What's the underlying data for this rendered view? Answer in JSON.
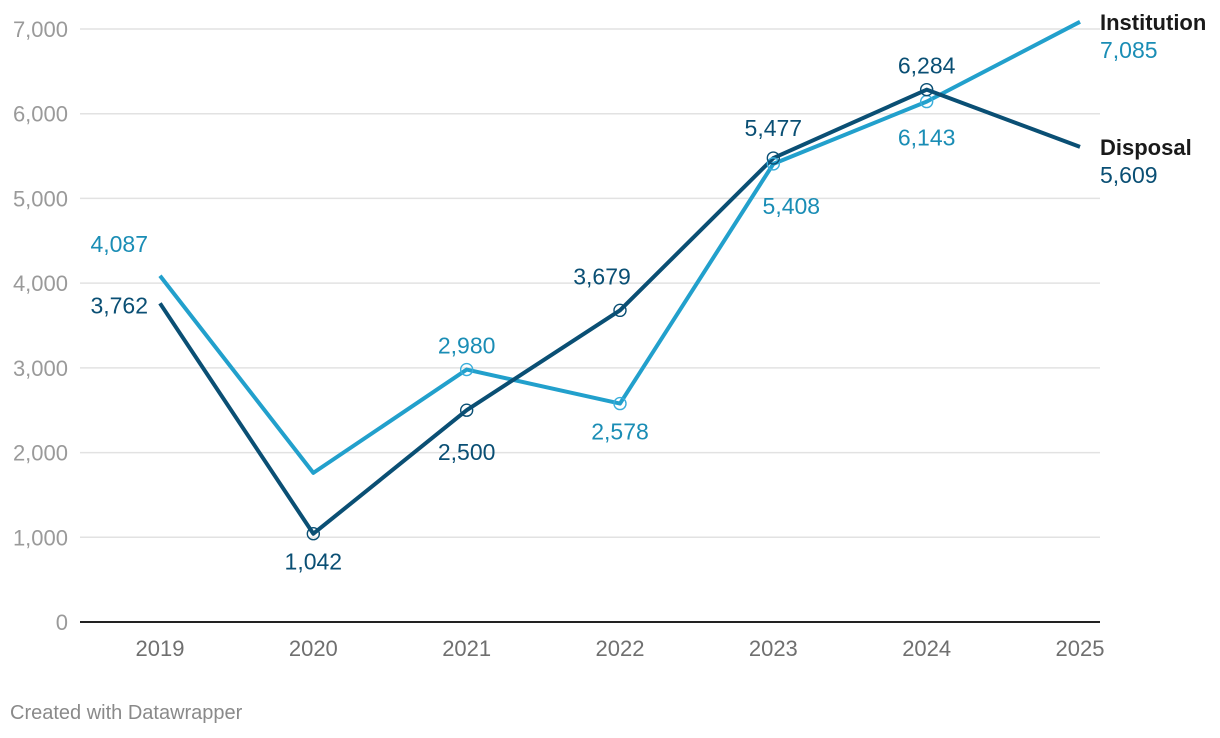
{
  "chart_data": {
    "type": "line",
    "x": [
      "2019",
      "2020",
      "2021",
      "2022",
      "2023",
      "2024",
      "2025"
    ],
    "ylim": [
      0,
      7000
    ],
    "yticks": [
      0,
      1000,
      2000,
      3000,
      4000,
      5000,
      6000,
      7000
    ],
    "ytick_labels": [
      "0",
      "1,000",
      "2,000",
      "3,000",
      "4,000",
      "5,000",
      "6,000",
      "7,000"
    ],
    "grid": true,
    "legend": "end-of-line labels",
    "series": [
      {
        "name": "Institution",
        "color": "#22a0cc",
        "label_color": "#1a8db5",
        "values": [
          4087,
          1760,
          2980,
          2578,
          5408,
          6143,
          7085
        ],
        "labels": [
          "4,087",
          "",
          "2,980",
          "2,578",
          "5,408",
          "6,143",
          "7,085"
        ]
      },
      {
        "name": "Disposal",
        "color": "#0a4f74",
        "label_color": "#0a4f74",
        "values": [
          3762,
          1042,
          2500,
          3679,
          5477,
          6284,
          5609
        ],
        "labels": [
          "3,762",
          "1,042",
          "2,500",
          "3,679",
          "5,477",
          "6,284",
          "5,609"
        ]
      }
    ]
  },
  "footer": {
    "credit": "Created with Datawrapper"
  }
}
